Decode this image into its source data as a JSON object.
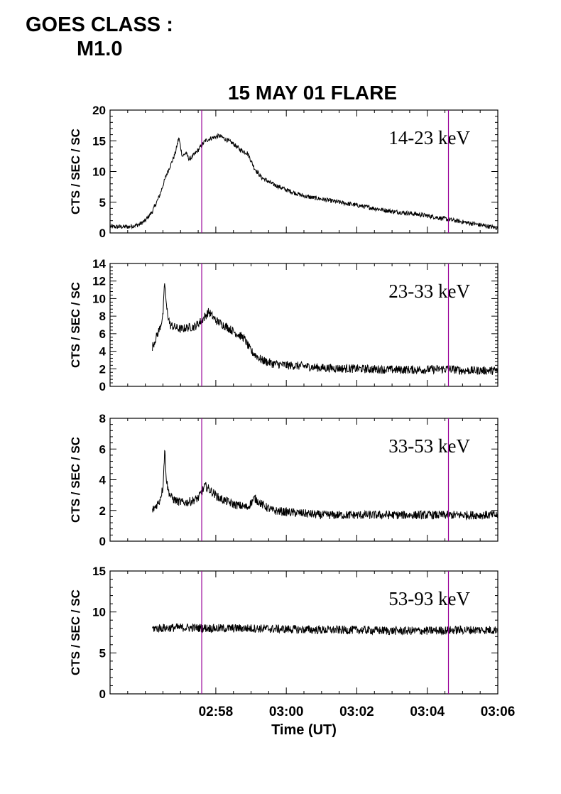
{
  "header": {
    "line1": "GOES CLASS :",
    "line2": "M1.0"
  },
  "chart_data": {
    "type": "line",
    "title": "15 MAY 01 FLARE",
    "xlabel": "Time (UT)",
    "x_unit": "minutes after 02:55 UT",
    "xlim": [
      0,
      11
    ],
    "x_ticks": [
      {
        "value": 3,
        "label": "02:58"
      },
      {
        "value": 5,
        "label": "03:00"
      },
      {
        "value": 7,
        "label": "03:02"
      },
      {
        "value": 9,
        "label": "03:04"
      },
      {
        "value": 11,
        "label": "03:06"
      }
    ],
    "markers": {
      "color": "#990099",
      "x": [
        2.6,
        9.6
      ]
    },
    "panels": [
      {
        "band": "14-23 keV",
        "ylabel": "CTS / SEC / SC",
        "ylim": [
          0,
          20
        ],
        "yticks": [
          0,
          5,
          10,
          15,
          20
        ],
        "x": [
          0.0,
          0.5,
          0.8,
          1.0,
          1.2,
          1.4,
          1.6,
          1.75,
          1.85,
          1.95,
          2.05,
          2.15,
          2.25,
          2.35,
          2.5,
          2.7,
          2.9,
          3.1,
          3.3,
          3.5,
          3.7,
          3.9,
          4.1,
          4.3,
          4.6,
          5.0,
          5.5,
          6.0,
          6.5,
          7.0,
          7.5,
          8.0,
          8.5,
          9.0,
          9.5,
          10.0,
          10.5,
          11.0
        ],
        "values": [
          1.0,
          1.0,
          1.3,
          2.0,
          3.5,
          6.0,
          9.5,
          11.5,
          13.0,
          15.5,
          12.5,
          13.0,
          12.0,
          12.5,
          13.5,
          15.0,
          15.5,
          15.8,
          15.2,
          14.5,
          13.5,
          13.0,
          10.5,
          9.0,
          8.0,
          7.0,
          6.0,
          5.5,
          5.0,
          4.5,
          4.0,
          3.5,
          3.2,
          2.8,
          2.3,
          1.8,
          1.3,
          0.8
        ]
      },
      {
        "band": "23-33 keV",
        "ylabel": "CTS / SEC / SC",
        "ylim": [
          0,
          14
        ],
        "yticks": [
          0,
          2,
          4,
          6,
          8,
          10,
          12,
          14
        ],
        "x": [
          1.2,
          1.3,
          1.4,
          1.5,
          1.55,
          1.6,
          1.65,
          1.7,
          1.8,
          2.0,
          2.2,
          2.4,
          2.6,
          2.8,
          3.0,
          3.3,
          3.6,
          3.8,
          4.0,
          4.3,
          4.6,
          5.0,
          5.5,
          6.0,
          7.0,
          8.0,
          9.0,
          9.6,
          10.0,
          11.0
        ],
        "values": [
          4.5,
          5.5,
          6.5,
          8.0,
          12.0,
          9.0,
          8.0,
          7.0,
          6.8,
          6.5,
          6.7,
          6.8,
          7.5,
          8.5,
          7.5,
          6.8,
          6.0,
          5.5,
          4.0,
          3.0,
          2.6,
          2.4,
          2.3,
          2.1,
          2.0,
          1.9,
          1.9,
          2.0,
          1.8,
          1.8
        ]
      },
      {
        "band": "33-53 keV",
        "ylabel": "CTS / SEC / SC",
        "ylim": [
          0,
          8
        ],
        "yticks": [
          0,
          2,
          4,
          6,
          8
        ],
        "x": [
          1.2,
          1.3,
          1.4,
          1.5,
          1.55,
          1.6,
          1.65,
          1.75,
          1.9,
          2.1,
          2.3,
          2.5,
          2.7,
          2.9,
          3.1,
          3.3,
          3.5,
          3.7,
          3.9,
          4.1,
          4.3,
          4.6,
          5.0,
          5.5,
          6.0,
          7.0,
          8.0,
          9.0,
          10.0,
          11.0
        ],
        "values": [
          2.0,
          2.3,
          2.6,
          3.5,
          6.0,
          4.0,
          3.3,
          2.8,
          2.6,
          2.5,
          2.6,
          2.8,
          3.6,
          3.2,
          2.8,
          2.6,
          2.4,
          2.3,
          2.2,
          2.8,
          2.4,
          2.0,
          1.9,
          1.8,
          1.7,
          1.7,
          1.7,
          1.7,
          1.7,
          1.7
        ]
      },
      {
        "band": "53-93 keV",
        "ylabel": "CTS / SEC / SC",
        "ylim": [
          0,
          15
        ],
        "yticks": [
          0,
          5,
          10,
          15
        ],
        "x": [
          1.2,
          2.0,
          3.0,
          4.0,
          5.0,
          6.0,
          7.0,
          8.0,
          9.0,
          10.0,
          11.0
        ],
        "values": [
          8.0,
          8.1,
          8.0,
          8.0,
          7.9,
          7.8,
          7.8,
          7.7,
          7.7,
          7.8,
          7.8
        ]
      }
    ]
  }
}
